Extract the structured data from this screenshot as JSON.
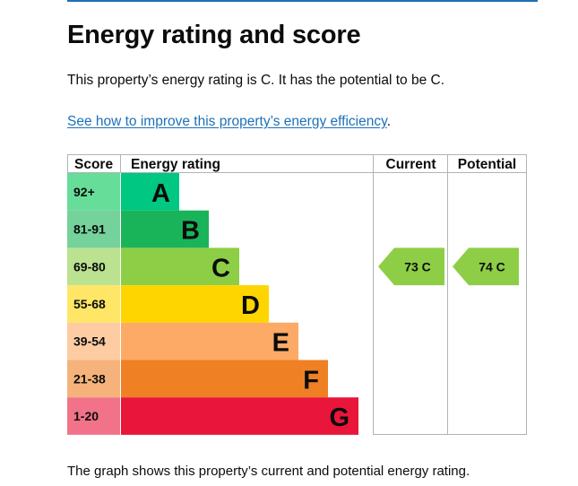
{
  "heading": "Energy rating and score",
  "intro": "This property’s energy rating is C. It has the potential to be C.",
  "link_text": "See how to improve this property’s energy efficiency",
  "link_suffix": ".",
  "caption": "The graph shows this property’s current and potential energy rating.",
  "colors": {
    "link": "#1d70b8",
    "rule": "#1d70b8",
    "border": "#b1b4b6"
  },
  "chart_data": {
    "type": "bar",
    "headers": {
      "score": "Score",
      "rating": "Energy rating",
      "current": "Current",
      "potential": "Potential"
    },
    "bands": [
      {
        "score": "92+",
        "letter": "A",
        "color": "#00c781",
        "score_bg": "#66dd99"
      },
      {
        "score": "81-91",
        "letter": "B",
        "color": "#19b459",
        "score_bg": "#75d29b"
      },
      {
        "score": "69-80",
        "letter": "C",
        "color": "#8dce46",
        "score_bg": "#bbe290"
      },
      {
        "score": "55-68",
        "letter": "D",
        "color": "#ffd500",
        "score_bg": "#ffe666"
      },
      {
        "score": "39-54",
        "letter": "E",
        "color": "#fcaa65",
        "score_bg": "#fdcca3"
      },
      {
        "score": "21-38",
        "letter": "F",
        "color": "#ef8023",
        "score_bg": "#f5b37b"
      },
      {
        "score": "1-20",
        "letter": "G",
        "color": "#e9153b",
        "score_bg": "#f27389"
      }
    ],
    "current": {
      "score": 73,
      "letter": "C",
      "label": "73 C",
      "color": "#8dce46"
    },
    "potential": {
      "score": 74,
      "letter": "C",
      "label": "74 C",
      "color": "#8dce46"
    }
  }
}
